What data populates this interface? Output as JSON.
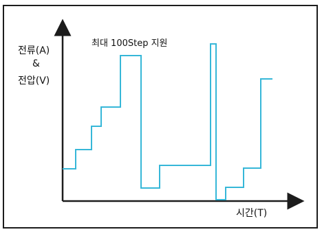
{
  "diagram": {
    "y_axis_label": [
      "전류(A)",
      "&",
      "전압(V)"
    ],
    "x_axis_label": "시간(T)",
    "annotation": "최대 100Step 지원",
    "colors": {
      "waveform": "#36b7d8",
      "axis": "#1c1c1c",
      "frame": "#1c1c1c",
      "text": "#111111"
    }
  }
}
